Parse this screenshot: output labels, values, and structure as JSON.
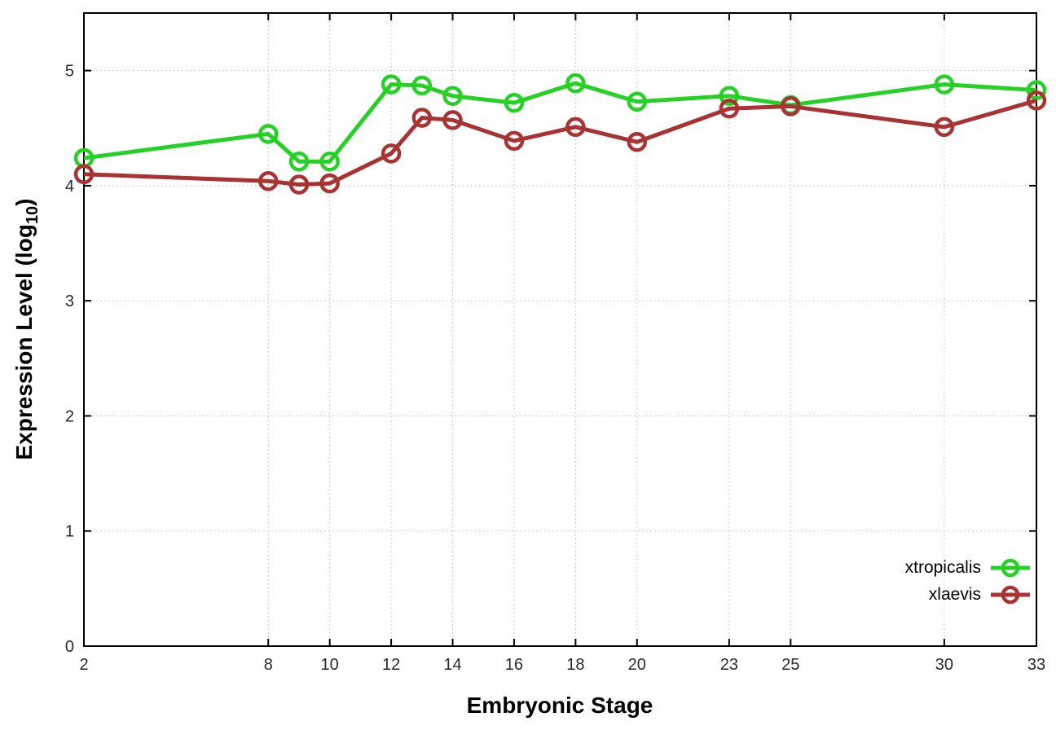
{
  "chart_data": {
    "type": "line",
    "title": "",
    "xlabel": "Embryonic Stage",
    "ylabel": "Expression Level (log10)",
    "ylabel_parts": {
      "prefix": "Expression Level (log",
      "sub": "10",
      "suffix": ")"
    },
    "x": [
      2,
      8,
      9,
      10,
      12,
      13,
      14,
      16,
      18,
      20,
      23,
      25,
      30,
      33
    ],
    "series": [
      {
        "name": "xtropicalis",
        "color": "#25d125",
        "values": [
          4.24,
          4.45,
          4.21,
          4.21,
          4.88,
          4.87,
          4.78,
          4.72,
          4.89,
          4.73,
          4.78,
          4.7,
          4.88,
          4.83
        ]
      },
      {
        "name": "xlaevis",
        "color": "#a93232",
        "values": [
          4.1,
          4.04,
          4.01,
          4.02,
          4.28,
          4.59,
          4.57,
          4.39,
          4.51,
          4.38,
          4.67,
          4.69,
          4.51,
          4.74
        ]
      }
    ],
    "xlim": [
      2,
      33
    ],
    "ylim": [
      0,
      5.5
    ],
    "xticks": [
      2,
      8,
      10,
      12,
      14,
      16,
      18,
      20,
      23,
      25,
      30,
      33
    ],
    "yticks": [
      0,
      1,
      2,
      3,
      4,
      5
    ],
    "grid": true,
    "grid_style": "dotted",
    "legend_position": "bottom-right",
    "axis_color": "#000000",
    "grid_color": "#bdbdbd",
    "tick_label_color": "#2a2a2a"
  }
}
